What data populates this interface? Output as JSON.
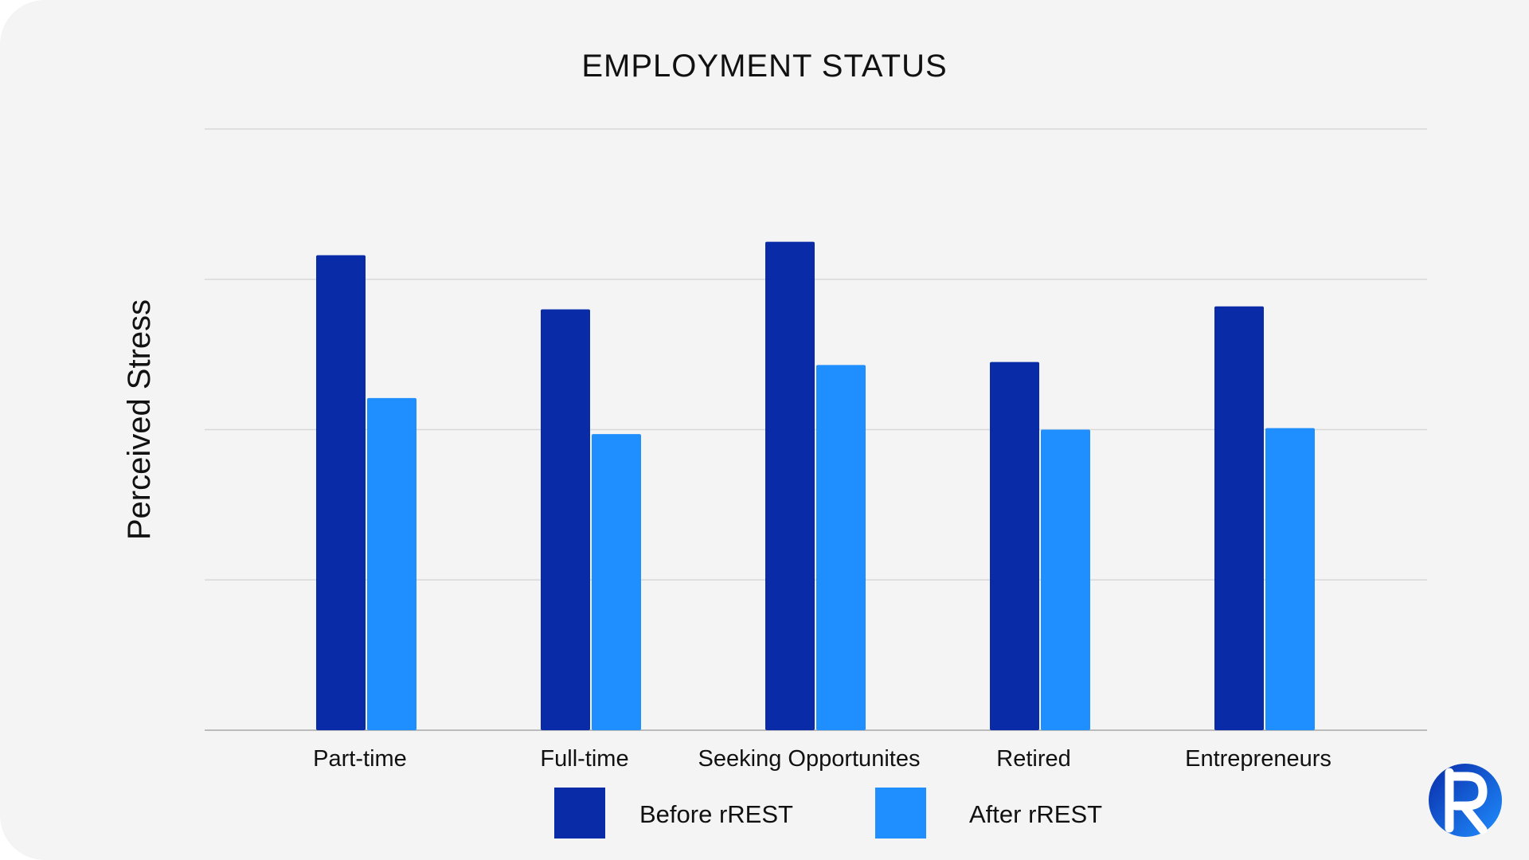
{
  "chart_data": {
    "type": "bar",
    "title": "EMPLOYMENT STATUS",
    "xlabel": "",
    "ylabel": "Perceived Stress",
    "categories": [
      "Part-time",
      "Full-time",
      "Seeking Opportunites",
      "Retired",
      "Entrepreneurs"
    ],
    "series": [
      {
        "name": "Before rREST",
        "color": "#0a2ba8",
        "values": [
          31.6,
          28.0,
          32.5,
          24.5,
          28.2
        ]
      },
      {
        "name": "After rREST",
        "color": "#1f8fff",
        "values": [
          22.1,
          19.7,
          24.3,
          20.0,
          20.1
        ]
      }
    ],
    "ylim": [
      0,
      40
    ],
    "y_gridlines": [
      0,
      10,
      20,
      30,
      40
    ],
    "y_tick_labels_shown": false,
    "grid": true,
    "legend": {
      "placement": "bottom-center"
    }
  },
  "logo": {
    "name": "r-logo-icon",
    "letter": "R",
    "colors": [
      "#0a2ba8",
      "#1f8fff"
    ]
  }
}
